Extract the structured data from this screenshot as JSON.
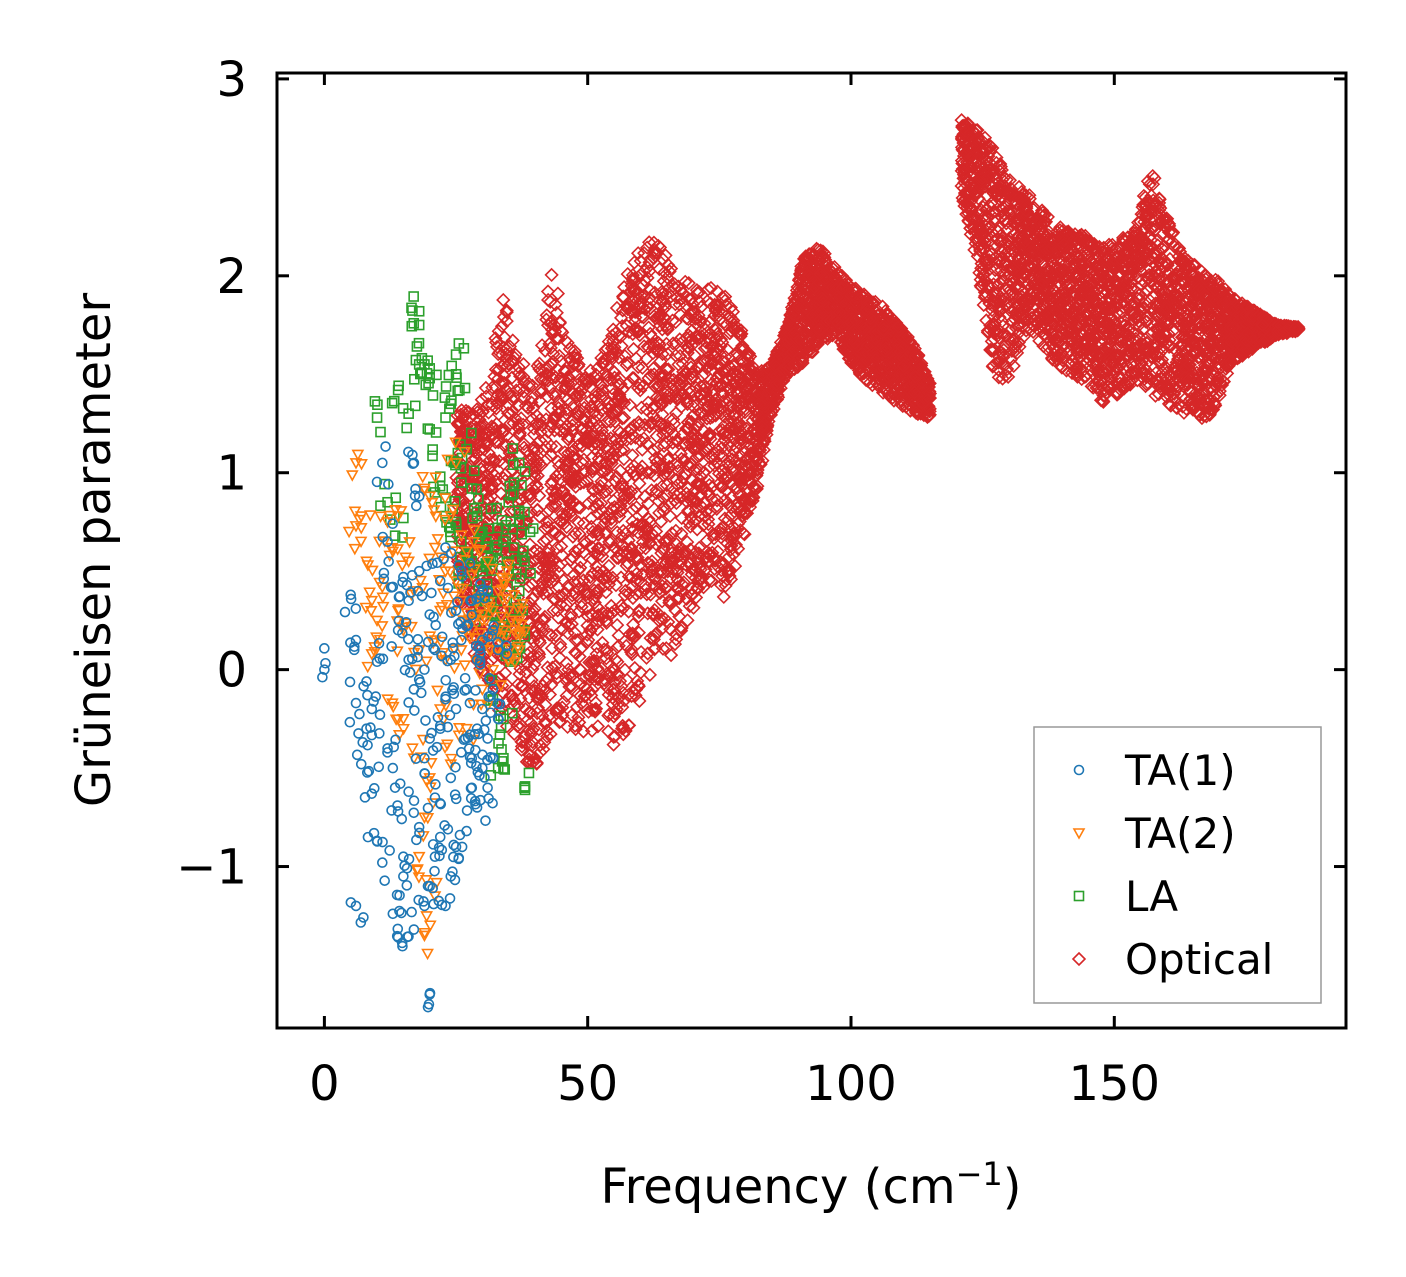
{
  "chart_data": {
    "type": "scatter",
    "xlabel": "Frequency (cm",
    "xlabel_sup": "−1",
    "xlabel_end": ")",
    "ylabel": "Grüneisen parameter",
    "xlim": [
      -9,
      194
    ],
    "ylim": [
      -1.82,
      3.03
    ],
    "xticks": [
      0,
      50,
      100,
      150
    ],
    "xtick_labels": [
      "0",
      "50",
      "100",
      "150"
    ],
    "yticks": [
      -1,
      0,
      1,
      2,
      3
    ],
    "ytick_labels": [
      "−1",
      "0",
      "1",
      "2",
      "3"
    ],
    "grid": false,
    "legend_position": "lower-right",
    "series": [
      {
        "name": "TA(1)",
        "marker": "circle",
        "color": "#1f77b4",
        "points": [
          [
            0,
            0
          ],
          [
            5,
            0.38
          ],
          [
            6,
            -1.2
          ],
          [
            6,
            0.15
          ],
          [
            6,
            -0.17
          ],
          [
            7,
            -0.48
          ],
          [
            8,
            -0.06
          ],
          [
            8,
            -0.3
          ],
          [
            9,
            -0.2
          ],
          [
            9,
            -0.63
          ],
          [
            10,
            -0.87
          ],
          [
            10,
            0.04
          ],
          [
            11,
            -0.98
          ],
          [
            11,
            1.05
          ],
          [
            12,
            0.65
          ],
          [
            12,
            -0.4
          ],
          [
            13,
            -0.5
          ],
          [
            13,
            0.42
          ],
          [
            13,
            -1.24
          ],
          [
            14,
            -1.36
          ],
          [
            14,
            -0.72
          ],
          [
            14,
            0.2
          ],
          [
            15,
            -0.95
          ],
          [
            15,
            -1.05
          ],
          [
            16,
            -0.62
          ],
          [
            16,
            0.35
          ],
          [
            17,
            -1.32
          ],
          [
            17,
            -0.1
          ],
          [
            17,
            1.05
          ],
          [
            18,
            0.88
          ],
          [
            18,
            -0.8
          ],
          [
            18,
            0.5
          ],
          [
            19,
            -1.2
          ],
          [
            19,
            0.0
          ],
          [
            19,
            -0.45
          ],
          [
            20,
            -1.65
          ],
          [
            20,
            0.28
          ],
          [
            20,
            -1.1
          ],
          [
            21,
            -0.65
          ],
          [
            21,
            0.1
          ],
          [
            22,
            -0.85
          ],
          [
            22,
            0.45
          ],
          [
            22,
            -0.3
          ],
          [
            23,
            -1.2
          ],
          [
            23,
            0.62
          ],
          [
            24,
            -1.05
          ],
          [
            24,
            -0.55
          ],
          [
            24,
            0.05
          ],
          [
            25,
            -0.2
          ],
          [
            25,
            0.3
          ],
          [
            25,
            -0.9
          ],
          [
            26,
            -0.42
          ],
          [
            26,
            0.5
          ],
          [
            27,
            -0.82
          ],
          [
            27,
            -0.1
          ],
          [
            27,
            0.22
          ],
          [
            28,
            -0.6
          ],
          [
            28,
            0.35
          ],
          [
            29,
            -0.3
          ],
          [
            29,
            0.05
          ],
          [
            29,
            -0.7
          ],
          [
            30,
            -0.5
          ],
          [
            30,
            0.15
          ],
          [
            30,
            -0.2
          ],
          [
            31,
            -0.35
          ],
          [
            31,
            0.4
          ],
          [
            31,
            -0.6
          ],
          [
            32,
            -0.1
          ],
          [
            32,
            0.2
          ],
          [
            32,
            -0.45
          ],
          [
            33,
            -0.25
          ],
          [
            33,
            0.1
          ],
          [
            15,
            0.47
          ],
          [
            16,
            0.05
          ],
          [
            18,
            -0.05
          ],
          [
            20,
            -0.35
          ],
          [
            21,
            -0.95
          ],
          [
            23,
            -0.15
          ],
          [
            26,
            0.15
          ],
          [
            28,
            -0.45
          ]
        ]
      },
      {
        "name": "TA(2)",
        "marker": "triangle",
        "color": "#ff7f0e",
        "points": [
          [
            6,
            1.05
          ],
          [
            6,
            0.73
          ],
          [
            7,
            0.72
          ],
          [
            8,
            0.55
          ],
          [
            9,
            0.35
          ],
          [
            9,
            0.08
          ],
          [
            10,
            0.25
          ],
          [
            11,
            0.42
          ],
          [
            12,
            0.75
          ],
          [
            12,
            -0.15
          ],
          [
            13,
            0.6
          ],
          [
            14,
            0.78
          ],
          [
            14,
            0.3
          ],
          [
            15,
            -0.25
          ],
          [
            15,
            0.2
          ],
          [
            16,
            0.55
          ],
          [
            17,
            0.4
          ],
          [
            17,
            -0.45
          ],
          [
            18,
            0.1
          ],
          [
            18,
            -0.95
          ],
          [
            19,
            -1.35
          ],
          [
            19,
            0.92
          ],
          [
            20,
            0.88
          ],
          [
            20,
            -0.55
          ],
          [
            21,
            0.62
          ],
          [
            21,
            -1.15
          ],
          [
            22,
            0.3
          ],
          [
            22,
            -0.2
          ],
          [
            23,
            0.5
          ],
          [
            23,
            0.05
          ],
          [
            24,
            0.78
          ],
          [
            24,
            -0.48
          ],
          [
            25,
            0.45
          ],
          [
            25,
            1.05
          ],
          [
            26,
            0.35
          ],
          [
            26,
            0.1
          ],
          [
            27,
            0.6
          ],
          [
            27,
            -0.3
          ],
          [
            28,
            0.2
          ],
          [
            28,
            0.48
          ],
          [
            29,
            0.05
          ],
          [
            29,
            0.35
          ],
          [
            30,
            0.25
          ],
          [
            30,
            -0.1
          ],
          [
            31,
            0.55
          ],
          [
            31,
            0.15
          ],
          [
            32,
            0.3
          ],
          [
            32,
            0.0
          ],
          [
            33,
            0.4
          ],
          [
            33,
            0.1
          ],
          [
            34,
            0.2
          ],
          [
            34,
            0.45
          ],
          [
            35,
            0.3
          ],
          [
            35,
            0.05
          ],
          [
            36,
            0.2
          ],
          [
            36,
            0.38
          ],
          [
            37,
            0.25
          ],
          [
            37,
            0.1
          ],
          [
            19,
            -0.75
          ],
          [
            21,
            0.15
          ]
        ]
      },
      {
        "name": "LA",
        "marker": "square",
        "color": "#2ca02c",
        "points": [
          [
            10,
            1.28
          ],
          [
            12,
            0.85
          ],
          [
            14,
            1.42
          ],
          [
            15,
            0.77
          ],
          [
            16,
            1.3
          ],
          [
            18,
            1.82
          ],
          [
            18,
            1.75
          ],
          [
            18,
            1.55
          ],
          [
            19,
            1.55
          ],
          [
            20,
            1.48
          ],
          [
            20,
            1.53
          ],
          [
            20,
            1.22
          ],
          [
            21,
            0.9
          ],
          [
            22,
            0.98
          ],
          [
            23,
            0.78
          ],
          [
            23,
            1.28
          ],
          [
            24,
            1.35
          ],
          [
            24,
            0.72
          ],
          [
            25,
            1.6
          ],
          [
            25,
            1.5
          ],
          [
            25,
            1.05
          ],
          [
            26,
            0.95
          ],
          [
            26,
            0.65
          ],
          [
            27,
            1.12
          ],
          [
            27,
            0.45
          ],
          [
            28,
            0.92
          ],
          [
            28,
            0.55
          ],
          [
            29,
            0.78
          ],
          [
            29,
            0.35
          ],
          [
            30,
            0.7
          ],
          [
            30,
            0.5
          ],
          [
            31,
            0.62
          ],
          [
            31,
            0.4
          ],
          [
            32,
            0.55
          ],
          [
            32,
            0.28
          ],
          [
            33,
            0.72
          ],
          [
            33,
            0.2
          ],
          [
            34,
            0.65
          ],
          [
            34,
            -0.25
          ],
          [
            34,
            -0.45
          ],
          [
            35,
            0.5
          ],
          [
            35,
            0.85
          ],
          [
            35,
            0.1
          ],
          [
            36,
            0.62
          ],
          [
            36,
            0.95
          ],
          [
            36,
            0.3
          ],
          [
            37,
            0.75
          ],
          [
            37,
            1.05
          ],
          [
            37,
            0.4
          ],
          [
            38,
            0.55
          ],
          [
            38,
            0.8
          ],
          [
            38,
            -0.6
          ],
          [
            38,
            0.2
          ],
          [
            33,
            -0.5
          ],
          [
            32,
            -0.15
          ],
          [
            36,
            0.05
          ]
        ]
      },
      {
        "name": "Optical",
        "marker": "diamond",
        "color": "#d62728",
        "envelope": [
          [
            25,
            0.45,
            1.35
          ],
          [
            28,
            0.1,
            1.3
          ],
          [
            31,
            -0.1,
            1.45
          ],
          [
            34,
            -0.25,
            1.95
          ],
          [
            37,
            -0.45,
            1.6
          ],
          [
            40,
            -0.5,
            1.45
          ],
          [
            43,
            -0.35,
            2.05
          ],
          [
            46,
            -0.3,
            1.75
          ],
          [
            49,
            -0.35,
            1.5
          ],
          [
            52,
            -0.3,
            1.55
          ],
          [
            55,
            -0.4,
            1.8
          ],
          [
            58,
            -0.3,
            2.05
          ],
          [
            61,
            -0.1,
            2.2
          ],
          [
            64,
            0.1,
            2.15
          ],
          [
            67,
            0.05,
            2.0
          ],
          [
            70,
            0.3,
            1.95
          ],
          [
            73,
            0.45,
            1.95
          ],
          [
            76,
            0.35,
            1.9
          ],
          [
            79,
            0.6,
            1.75
          ],
          [
            82,
            0.9,
            1.5
          ],
          [
            85,
            1.3,
            1.55
          ],
          [
            88,
            1.5,
            1.75
          ],
          [
            91,
            1.55,
            2.1
          ],
          [
            94,
            1.65,
            2.15
          ],
          [
            97,
            1.7,
            2.05
          ],
          [
            100,
            1.55,
            1.95
          ],
          [
            103,
            1.45,
            1.9
          ],
          [
            106,
            1.4,
            1.85
          ],
          [
            109,
            1.35,
            1.75
          ],
          [
            112,
            1.3,
            1.65
          ],
          [
            115,
            1.28,
            1.45
          ],
          [
            121,
            2.4,
            2.8
          ],
          [
            124,
            2.05,
            2.75
          ],
          [
            127,
            1.5,
            2.65
          ],
          [
            130,
            1.45,
            2.5
          ],
          [
            133,
            1.7,
            2.45
          ],
          [
            136,
            1.65,
            2.35
          ],
          [
            139,
            1.55,
            2.25
          ],
          [
            142,
            1.5,
            2.25
          ],
          [
            145,
            1.45,
            2.2
          ],
          [
            148,
            1.35,
            2.15
          ],
          [
            151,
            1.4,
            2.2
          ],
          [
            154,
            1.45,
            2.25
          ],
          [
            157,
            1.4,
            2.55
          ],
          [
            160,
            1.35,
            2.3
          ],
          [
            163,
            1.3,
            2.1
          ],
          [
            166,
            1.25,
            2.05
          ],
          [
            169,
            1.3,
            2.0
          ],
          [
            172,
            1.55,
            1.9
          ],
          [
            175,
            1.6,
            1.85
          ],
          [
            178,
            1.65,
            1.8
          ],
          [
            181,
            1.7,
            1.75
          ],
          [
            185,
            1.72,
            1.74
          ]
        ]
      }
    ]
  }
}
